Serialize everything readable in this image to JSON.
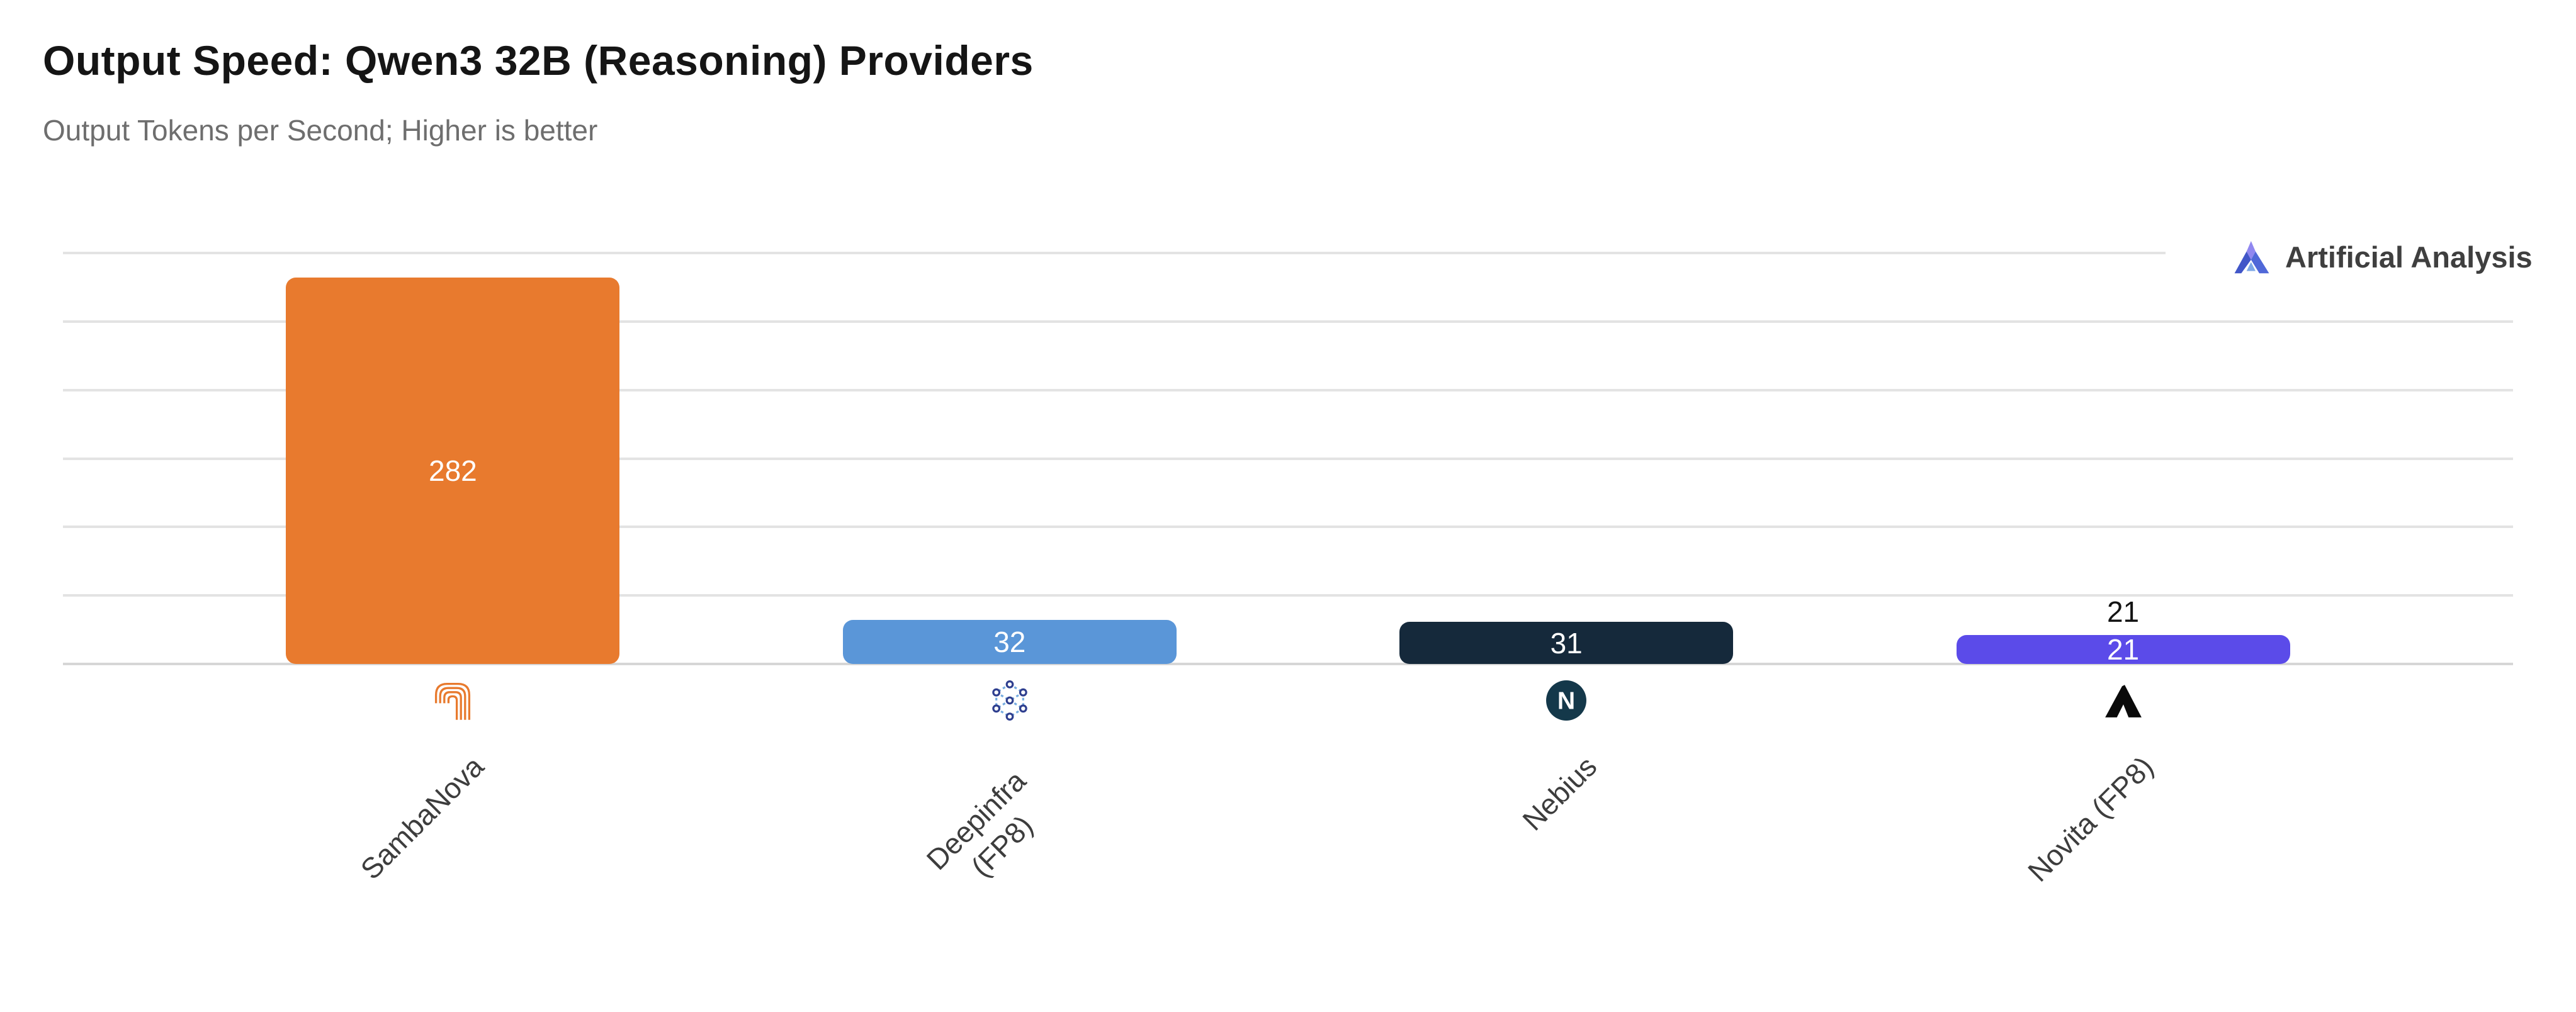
{
  "header": {
    "brand_name": "Artificial Analysis"
  },
  "chart_data": {
    "type": "bar",
    "title": "Output Speed: Qwen3 32B (Reasoning) Providers",
    "subtitle": "Output Tokens per Second; Higher is better",
    "categories": [
      "SambaNova",
      "Deepinfra (FP8)",
      "Nebius",
      "Novita (FP8)"
    ],
    "values": [
      282,
      32,
      31,
      21
    ],
    "series": [
      {
        "name": "SambaNova",
        "value": 282,
        "color": "#E87A2E"
      },
      {
        "name": "Deepinfra (FP8)",
        "value": 32,
        "color": "#5A96D8"
      },
      {
        "name": "Nebius",
        "value": 31,
        "color": "#15293B"
      },
      {
        "name": "Novita (FP8)",
        "value": 21,
        "color": "#5B4BE9"
      }
    ],
    "bar_colors": [
      "#E87A2E",
      "#5A96D8",
      "#15293B",
      "#5B4BE9"
    ],
    "outside_value_label": {
      "category_index": 3,
      "value": 21,
      "color": "#141414"
    },
    "icon_names": [
      "sambanova-icon",
      "deepinfra-icon",
      "nebius-icon",
      "novita-icon"
    ],
    "xlabel": "",
    "ylabel": "",
    "ylim": [
      0,
      300
    ],
    "gridline_step": 50,
    "grid": true,
    "legend_position": "none",
    "y_tick_labels_visible": false,
    "colors": {
      "gridline": "#E3E3E3",
      "axis_line": "#D6D6D6",
      "title": "#151515",
      "subtitle": "#6E6E6E",
      "axis_label": "#3D3D3D",
      "value_label_inside": "#FFFFFF",
      "brand_text": "#3F3F3F"
    }
  }
}
